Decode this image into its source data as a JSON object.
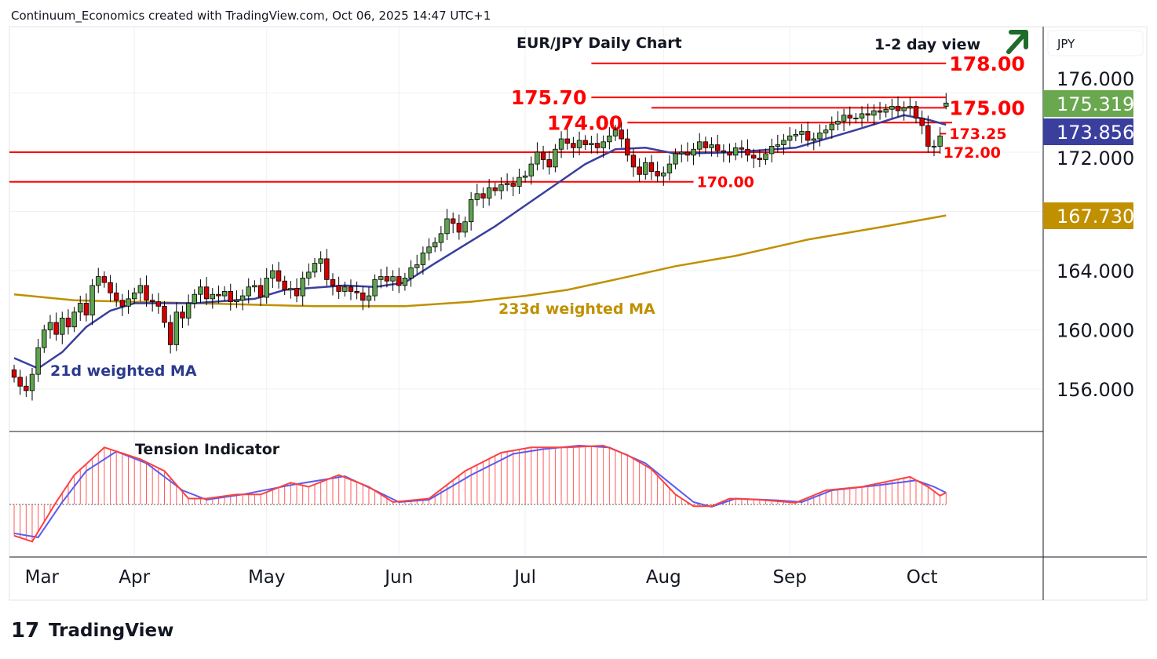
{
  "header": {
    "credit": "Continuum_Economics created with TradingView.com, Oct 06, 2025 14:47 UTC+1"
  },
  "chart_data": {
    "type": "candlestick",
    "title": "EUR/JPY Daily Chart",
    "subtitle": "1-2 day view",
    "outlook_icon": "arrow-up-right",
    "currency": "JPY",
    "x_start": "2025-03-03",
    "x_end": "2025-10-06",
    "x_tick_labels": [
      {
        "label": "Mar",
        "day": 3
      },
      {
        "label": "Apr",
        "day": 21
      },
      {
        "label": "May",
        "day": 43
      },
      {
        "label": "Jun",
        "day": 65
      },
      {
        "label": "Jul",
        "day": 86
      },
      {
        "label": "Aug",
        "day": 109
      },
      {
        "label": "Sep",
        "day": 130
      },
      {
        "label": "Oct",
        "day": 152
      }
    ],
    "y_tick_labels": [
      "176.000",
      "172.000",
      "164.000",
      "160.000",
      "156.000"
    ],
    "y_ticks": [
      176,
      172,
      164,
      160,
      156
    ],
    "ylim": [
      152.2,
      179.3
    ],
    "closes": [
      156.8,
      156.2,
      155.9,
      157.0,
      158.8,
      160.0,
      160.5,
      159.7,
      160.8,
      160.2,
      161.2,
      161.8,
      161.0,
      163.0,
      163.6,
      163.2,
      162.5,
      162.0,
      161.6,
      162.1,
      162.5,
      163.0,
      162.0,
      161.9,
      161.6,
      160.5,
      159.0,
      161.2,
      160.8,
      161.8,
      162.4,
      162.9,
      162.1,
      162.4,
      162.3,
      162.6,
      161.9,
      162.0,
      162.3,
      162.9,
      163.0,
      162.2,
      163.5,
      164.0,
      163.3,
      162.7,
      162.8,
      162.3,
      163.5,
      163.9,
      164.5,
      164.8,
      163.4,
      163.0,
      162.6,
      162.9,
      162.6,
      162.5,
      162.0,
      162.3,
      163.4,
      163.6,
      163.3,
      163.6,
      163.0,
      163.5,
      164.2,
      164.4,
      165.2,
      165.6,
      165.9,
      166.5,
      167.5,
      167.2,
      166.6,
      167.3,
      168.8,
      169.2,
      168.9,
      169.6,
      169.4,
      169.8,
      169.9,
      169.7,
      170.3,
      170.4,
      171.2,
      172.0,
      171.5,
      171.0,
      172.2,
      172.9,
      172.6,
      172.3,
      172.8,
      172.5,
      172.6,
      172.3,
      172.7,
      173.1,
      173.5,
      172.9,
      171.8,
      171.0,
      170.5,
      171.3,
      170.7,
      170.4,
      170.6,
      171.2,
      171.9,
      172.0,
      171.8,
      172.2,
      172.7,
      172.3,
      172.5,
      172.1,
      172.0,
      171.8,
      172.3,
      172.2,
      171.8,
      171.6,
      171.5,
      171.9,
      172.4,
      172.5,
      172.8,
      173.1,
      173.2,
      173.4,
      172.8,
      172.9,
      173.3,
      173.5,
      173.9,
      174.1,
      174.5,
      174.3,
      174.3,
      174.6,
      174.5,
      174.8,
      174.7,
      174.9,
      175.1,
      174.8,
      175.0,
      175.1,
      174.3,
      173.8,
      172.4,
      172.4,
      173.1,
      175.319
    ],
    "first_open": 157.3,
    "last_candle": {
      "open": 175.1,
      "high": 176.0,
      "low": 174.9,
      "close": 175.319
    },
    "series": [
      {
        "name": "21d weighted MA",
        "color": "#3a3f9e",
        "last": "173.856",
        "points": [
          [
            0,
            158.1
          ],
          [
            4,
            157.4
          ],
          [
            8,
            158.5
          ],
          [
            12,
            160.2
          ],
          [
            16,
            161.3
          ],
          [
            20,
            161.8
          ],
          [
            30,
            161.8
          ],
          [
            40,
            162.1
          ],
          [
            45,
            162.7
          ],
          [
            55,
            163.0
          ],
          [
            60,
            162.9
          ],
          [
            65,
            163.2
          ],
          [
            70,
            164.5
          ],
          [
            80,
            167.0
          ],
          [
            90,
            169.8
          ],
          [
            95,
            171.2
          ],
          [
            100,
            172.2
          ],
          [
            105,
            172.3
          ],
          [
            110,
            171.9
          ],
          [
            120,
            172.0
          ],
          [
            130,
            172.3
          ],
          [
            140,
            173.5
          ],
          [
            148,
            174.5
          ],
          [
            152,
            174.2
          ],
          [
            155,
            173.856
          ]
        ]
      },
      {
        "name": "233d weighted MA",
        "color": "#c09000",
        "last": "167.730",
        "points": [
          [
            0,
            162.4
          ],
          [
            10,
            162.0
          ],
          [
            30,
            161.8
          ],
          [
            50,
            161.6
          ],
          [
            65,
            161.6
          ],
          [
            76,
            161.9
          ],
          [
            85,
            162.3
          ],
          [
            92,
            162.7
          ],
          [
            100,
            163.4
          ],
          [
            110,
            164.3
          ],
          [
            120,
            165.0
          ],
          [
            132,
            166.1
          ],
          [
            145,
            167.0
          ],
          [
            155,
            167.73
          ]
        ]
      }
    ],
    "last_price": {
      "label": "175.319",
      "color": "#6aa84f"
    },
    "ma21_tag": {
      "label": "173.856",
      "color": "#3a3f9e"
    },
    "ma233_tag": {
      "label": "167.730",
      "color": "#c09000"
    },
    "levels": [
      {
        "label": "178.00",
        "price": 178.0,
        "from_day": 96,
        "to_day": 155,
        "label_side": "right",
        "size": "big"
      },
      {
        "label": "175.70",
        "price": 175.7,
        "from_day": 96,
        "to_day": 155,
        "label_side": "left",
        "size": "big"
      },
      {
        "label": "175.00",
        "price": 175.0,
        "from_day": 106,
        "to_day": 155,
        "label_side": "right",
        "size": "big"
      },
      {
        "label": "174.00",
        "price": 174.0,
        "from_day": 102,
        "to_day": 156,
        "label_side": "left",
        "size": "big"
      },
      {
        "label": "173.25",
        "price": 173.25,
        "from_day": 154,
        "to_day": 155,
        "label_side": "right",
        "size": "small"
      },
      {
        "label": "172.00",
        "price": 172.0,
        "from_day": -1,
        "to_day": 154,
        "label_side": "right",
        "size": "small"
      },
      {
        "label": "170.00",
        "price": 170.0,
        "from_day": -1,
        "to_day": 113,
        "label_side": "right",
        "size": "small"
      }
    ],
    "annotations": {
      "ma21": "21d weighted MA",
      "ma233": "233d weighted MA"
    },
    "indicator": {
      "name": "Tension Indicator",
      "ylim": [
        -70,
        110
      ],
      "fast": {
        "color": "#ff4040",
        "points": [
          [
            0,
            -53
          ],
          [
            3,
            -63
          ],
          [
            7,
            4
          ],
          [
            10,
            50
          ],
          [
            15,
            97
          ],
          [
            21,
            77
          ],
          [
            25,
            57
          ],
          [
            29,
            10
          ],
          [
            32,
            10
          ],
          [
            37,
            17
          ],
          [
            41,
            17
          ],
          [
            46,
            37
          ],
          [
            49,
            30
          ],
          [
            54,
            50
          ],
          [
            59,
            30
          ],
          [
            63,
            4
          ],
          [
            69,
            10
          ],
          [
            75,
            57
          ],
          [
            81,
            88
          ],
          [
            86,
            97
          ],
          [
            92,
            97
          ],
          [
            98,
            100
          ],
          [
            102,
            84
          ],
          [
            106,
            60
          ],
          [
            110,
            17
          ],
          [
            113,
            -3
          ],
          [
            116,
            -3
          ],
          [
            119,
            10
          ],
          [
            124,
            8
          ],
          [
            130,
            3
          ],
          [
            135,
            24
          ],
          [
            141,
            30
          ],
          [
            149,
            47
          ],
          [
            152,
            30
          ],
          [
            154,
            15
          ],
          [
            155,
            20
          ]
        ]
      },
      "slow": {
        "color": "#5b5bf0",
        "points": [
          [
            0,
            -49
          ],
          [
            4,
            -56
          ],
          [
            8,
            4
          ],
          [
            12,
            57
          ],
          [
            17,
            90
          ],
          [
            22,
            70
          ],
          [
            28,
            24
          ],
          [
            32,
            8
          ],
          [
            38,
            17
          ],
          [
            46,
            33
          ],
          [
            55,
            48
          ],
          [
            60,
            24
          ],
          [
            64,
            4
          ],
          [
            69,
            8
          ],
          [
            76,
            50
          ],
          [
            83,
            86
          ],
          [
            88,
            94
          ],
          [
            94,
            100
          ],
          [
            99,
            97
          ],
          [
            105,
            70
          ],
          [
            109,
            37
          ],
          [
            113,
            4
          ],
          [
            116,
            -4
          ],
          [
            120,
            10
          ],
          [
            127,
            7
          ],
          [
            131,
            4
          ],
          [
            136,
            24
          ],
          [
            144,
            33
          ],
          [
            150,
            41
          ],
          [
            153,
            30
          ],
          [
            155,
            20
          ]
        ]
      }
    }
  },
  "footer": {
    "brand": "TradingView"
  }
}
